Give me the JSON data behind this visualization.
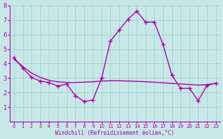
{
  "xlabel": "Windchill (Refroidissement éolien,°C)",
  "xlim": [
    -0.5,
    23.5
  ],
  "ylim": [
    0,
    8
  ],
  "xticks": [
    0,
    1,
    2,
    3,
    4,
    5,
    6,
    7,
    8,
    9,
    10,
    11,
    12,
    13,
    14,
    15,
    16,
    17,
    18,
    19,
    20,
    21,
    22,
    23
  ],
  "yticks": [
    1,
    2,
    3,
    4,
    5,
    6,
    7,
    8
  ],
  "bg_color": "#c8e8e8",
  "grid_color": "#99cccc",
  "line_color": "#aa00aa",
  "x": [
    0,
    1,
    2,
    3,
    4,
    5,
    6,
    7,
    8,
    9,
    10,
    11,
    12,
    13,
    14,
    15,
    16,
    17,
    18,
    19,
    20,
    21,
    22,
    23
  ],
  "y_main": [
    4.4,
    3.7,
    3.05,
    2.8,
    2.7,
    2.45,
    2.6,
    1.8,
    1.4,
    1.5,
    3.0,
    5.55,
    6.3,
    7.05,
    7.6,
    6.85,
    6.85,
    5.3,
    3.2,
    2.3,
    2.3,
    1.45,
    2.5,
    2.65
  ],
  "y_smooth": [
    4.3,
    3.8,
    3.35,
    3.05,
    2.85,
    2.75,
    2.7,
    2.7,
    2.72,
    2.75,
    2.8,
    2.82,
    2.82,
    2.8,
    2.78,
    2.75,
    2.72,
    2.68,
    2.64,
    2.6,
    2.56,
    2.52,
    2.55,
    2.65
  ],
  "xlabel_fontsize": 5.5,
  "tick_fontsize_x": 5,
  "tick_fontsize_y": 6
}
